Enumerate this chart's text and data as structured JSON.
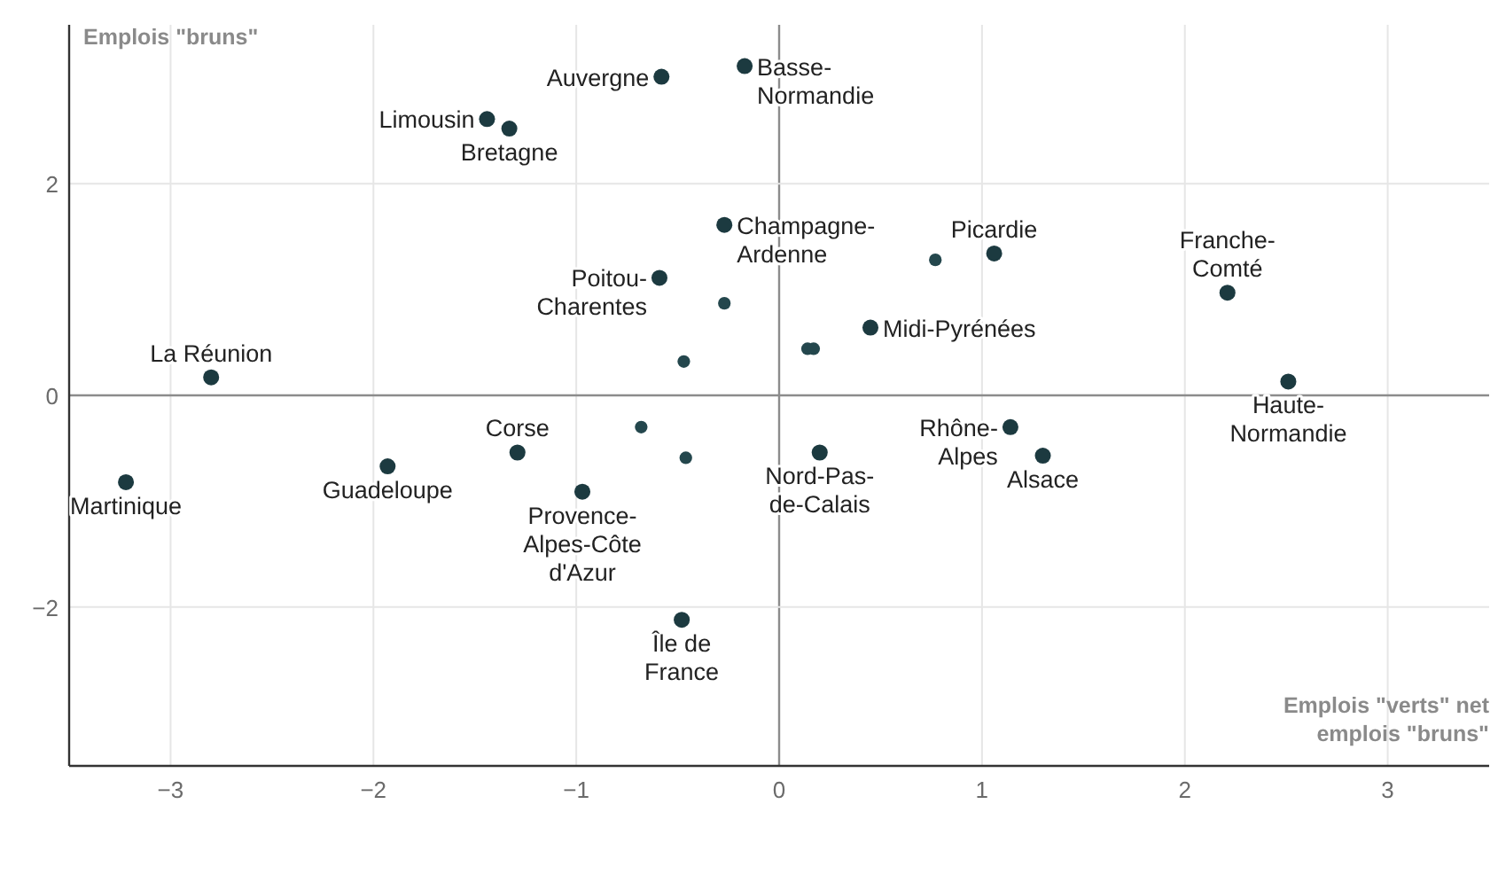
{
  "chart_data": {
    "type": "scatter",
    "xlabel": "Emplois \"verts\" net emplois \"bruns\"",
    "ylabel": "Emplois \"bruns\"",
    "xlim": [
      -3.5,
      3.5
    ],
    "ylim": [
      -3.5,
      3.5
    ],
    "xticks": [
      {
        "value": -3,
        "label": "−3"
      },
      {
        "value": -2,
        "label": "−2"
      },
      {
        "value": -1,
        "label": "−1"
      },
      0,
      1,
      2,
      3
    ],
    "yticks": [
      {
        "value": -2,
        "label": "−2"
      },
      0,
      2
    ],
    "grid": true,
    "marker": "circle",
    "series": [
      {
        "color": "#1c3a40",
        "x": [
          -3.22,
          -2.8,
          -1.93,
          -1.29,
          -0.97,
          -0.48,
          -1.44,
          -1.33,
          -0.58,
          -0.17,
          -0.27,
          -0.59,
          1.06,
          0.45,
          2.21,
          2.51,
          0.2,
          1.14,
          1.3
        ],
        "values": [
          -0.82,
          0.17,
          -0.67,
          -0.54,
          -0.91,
          -2.12,
          2.61,
          2.52,
          3.01,
          3.11,
          1.61,
          1.11,
          1.34,
          0.64,
          0.97,
          0.13,
          -0.54,
          -0.3,
          -0.57
        ]
      },
      {
        "color": "#24474d",
        "x": [
          -0.27,
          -0.47,
          -0.68,
          -0.46,
          0.14,
          0.17,
          0.77
        ],
        "values": [
          0.87,
          0.32,
          -0.3,
          -0.59,
          0.44,
          0.44,
          1.28
        ]
      }
    ],
    "annotations": [
      {
        "text": "Martinique",
        "x": -3.22,
        "y": -0.82
      },
      {
        "text": "La Réunion",
        "x": -2.8,
        "y": 0.17
      },
      {
        "text": "Guadeloupe",
        "x": -1.93,
        "y": -0.67
      },
      {
        "text": "Corse",
        "x": -1.29,
        "y": -0.54
      },
      {
        "text": "Provence-Alpes-Côte d'Azur",
        "x": -0.97,
        "y": -0.91
      },
      {
        "text": "Île de France",
        "x": -0.48,
        "y": -2.12
      },
      {
        "text": "Limousin",
        "x": -1.44,
        "y": 2.61
      },
      {
        "text": "Bretagne",
        "x": -1.33,
        "y": 2.52
      },
      {
        "text": "Auvergne",
        "x": -0.58,
        "y": 3.01
      },
      {
        "text": "Basse-Normandie",
        "x": -0.17,
        "y": 3.11
      },
      {
        "text": "Champagne-Ardenne",
        "x": -0.27,
        "y": 1.61
      },
      {
        "text": "Poitou-Charentes",
        "x": -0.59,
        "y": 1.11
      },
      {
        "text": "Picardie",
        "x": 1.06,
        "y": 1.34
      },
      {
        "text": "Midi-Pyrénées",
        "x": 0.45,
        "y": 0.64
      },
      {
        "text": "Franche-Comté",
        "x": 2.21,
        "y": 0.97
      },
      {
        "text": "Haute-Normandie",
        "x": 2.51,
        "y": 0.13
      },
      {
        "text": "Nord-Pas-de-Calais",
        "x": 0.2,
        "y": -0.54
      },
      {
        "text": "Rhône-Alpes",
        "x": 1.14,
        "y": -0.3
      },
      {
        "text": "Alsace",
        "x": 1.3,
        "y": -0.57
      }
    ]
  }
}
